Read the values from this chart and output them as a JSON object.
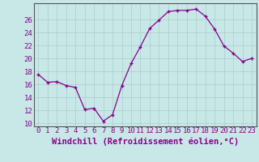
{
  "x": [
    0,
    1,
    2,
    3,
    4,
    5,
    6,
    7,
    8,
    9,
    10,
    11,
    12,
    13,
    14,
    15,
    16,
    17,
    18,
    19,
    20,
    21,
    22,
    23
  ],
  "y": [
    17.5,
    16.3,
    16.4,
    15.8,
    15.5,
    12.1,
    12.3,
    10.3,
    11.3,
    15.8,
    19.2,
    21.8,
    24.6,
    25.9,
    27.2,
    27.4,
    27.4,
    27.6,
    26.5,
    24.5,
    21.9,
    20.8,
    19.5,
    20.0
  ],
  "xlabel": "Windchill (Refroidissement éolien,°C)",
  "ylim": [
    9.5,
    28.5
  ],
  "xlim": [
    -0.5,
    23.5
  ],
  "yticks": [
    10,
    12,
    14,
    16,
    18,
    20,
    22,
    24,
    26
  ],
  "xticks": [
    0,
    1,
    2,
    3,
    4,
    5,
    6,
    7,
    8,
    9,
    10,
    11,
    12,
    13,
    14,
    15,
    16,
    17,
    18,
    19,
    20,
    21,
    22,
    23
  ],
  "line_color": "#880088",
  "marker": "+",
  "bg_color": "#c8e8e8",
  "grid_color": "#aacccc",
  "axis_color": "#555555",
  "label_color": "#880088",
  "xlabel_fontsize": 7.5,
  "tick_fontsize": 6.5
}
